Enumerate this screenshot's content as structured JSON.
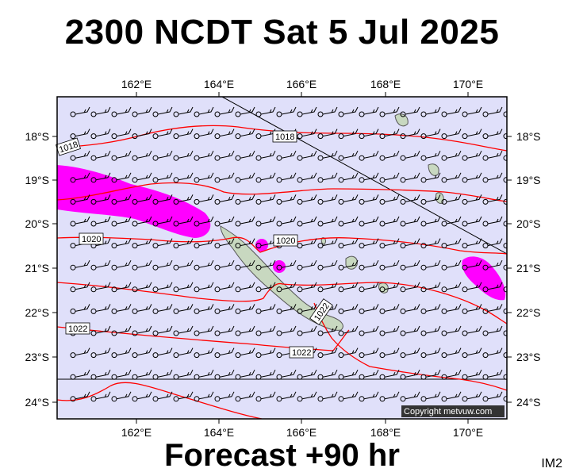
{
  "title": "2300 NCDT Sat 5 Jul 2025",
  "forecast_label": "Forecast +90 hr",
  "map_id": "IM2",
  "copyright": "Copyright metvuw.com",
  "longitude_ticks": [
    "162°E",
    "164°E",
    "166°E",
    "168°E",
    "170°E"
  ],
  "latitude_ticks": [
    "18°S",
    "19°S",
    "20°S",
    "21°S",
    "22°S",
    "23°S",
    "24°S"
  ],
  "isobar_labels": [
    "1018",
    "1018",
    "1020",
    "1020",
    "1022",
    "1022",
    "1022"
  ],
  "colors": {
    "ocean": "#e0e0fa",
    "land": "#c8d8c0",
    "isobar": "#ff0000",
    "rain": "#ff00ff"
  }
}
